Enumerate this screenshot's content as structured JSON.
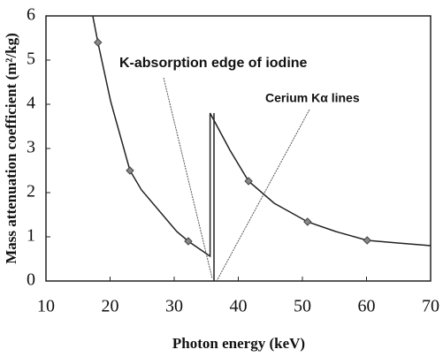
{
  "chart_data": {
    "type": "line",
    "xlabel": "Photon energy (keV)",
    "ylabel": "Mass attenuation coefficient (m²/kg)",
    "annotations": [
      "K-absorption edge of iodine",
      "Cerium Kα lines"
    ],
    "xlim": [
      10,
      70
    ],
    "xticks": [
      10,
      20,
      30,
      40,
      50,
      60,
      70
    ],
    "ylim": [
      0,
      6
    ],
    "yticks": [
      0,
      1,
      2,
      3,
      4,
      5,
      6
    ],
    "series": [
      {
        "color": "#222222",
        "marker": "none",
        "x": [
          17.3,
          18.1,
          20.1,
          23.1,
          24.9,
          30.4,
          32.2,
          34.6,
          35.6,
          35.6,
          38.7,
          41.6,
          45.6,
          50.8,
          55.2,
          60.1,
          64.9,
          70
        ],
        "values": [
          6,
          5.4,
          4.06,
          2.5,
          2.06,
          1.12,
          0.9,
          0.66,
          0.56,
          3.8,
          2.96,
          2.26,
          1.76,
          1.34,
          1.12,
          0.92,
          0.86,
          0.8
        ]
      },
      {
        "color": "#888888",
        "marker": "diamond",
        "x": [
          18.1,
          23.1,
          32.2,
          41.6,
          50.8,
          60.1
        ],
        "values": [
          5.4,
          2.5,
          0.9,
          2.26,
          1.34,
          0.92
        ]
      }
    ]
  }
}
